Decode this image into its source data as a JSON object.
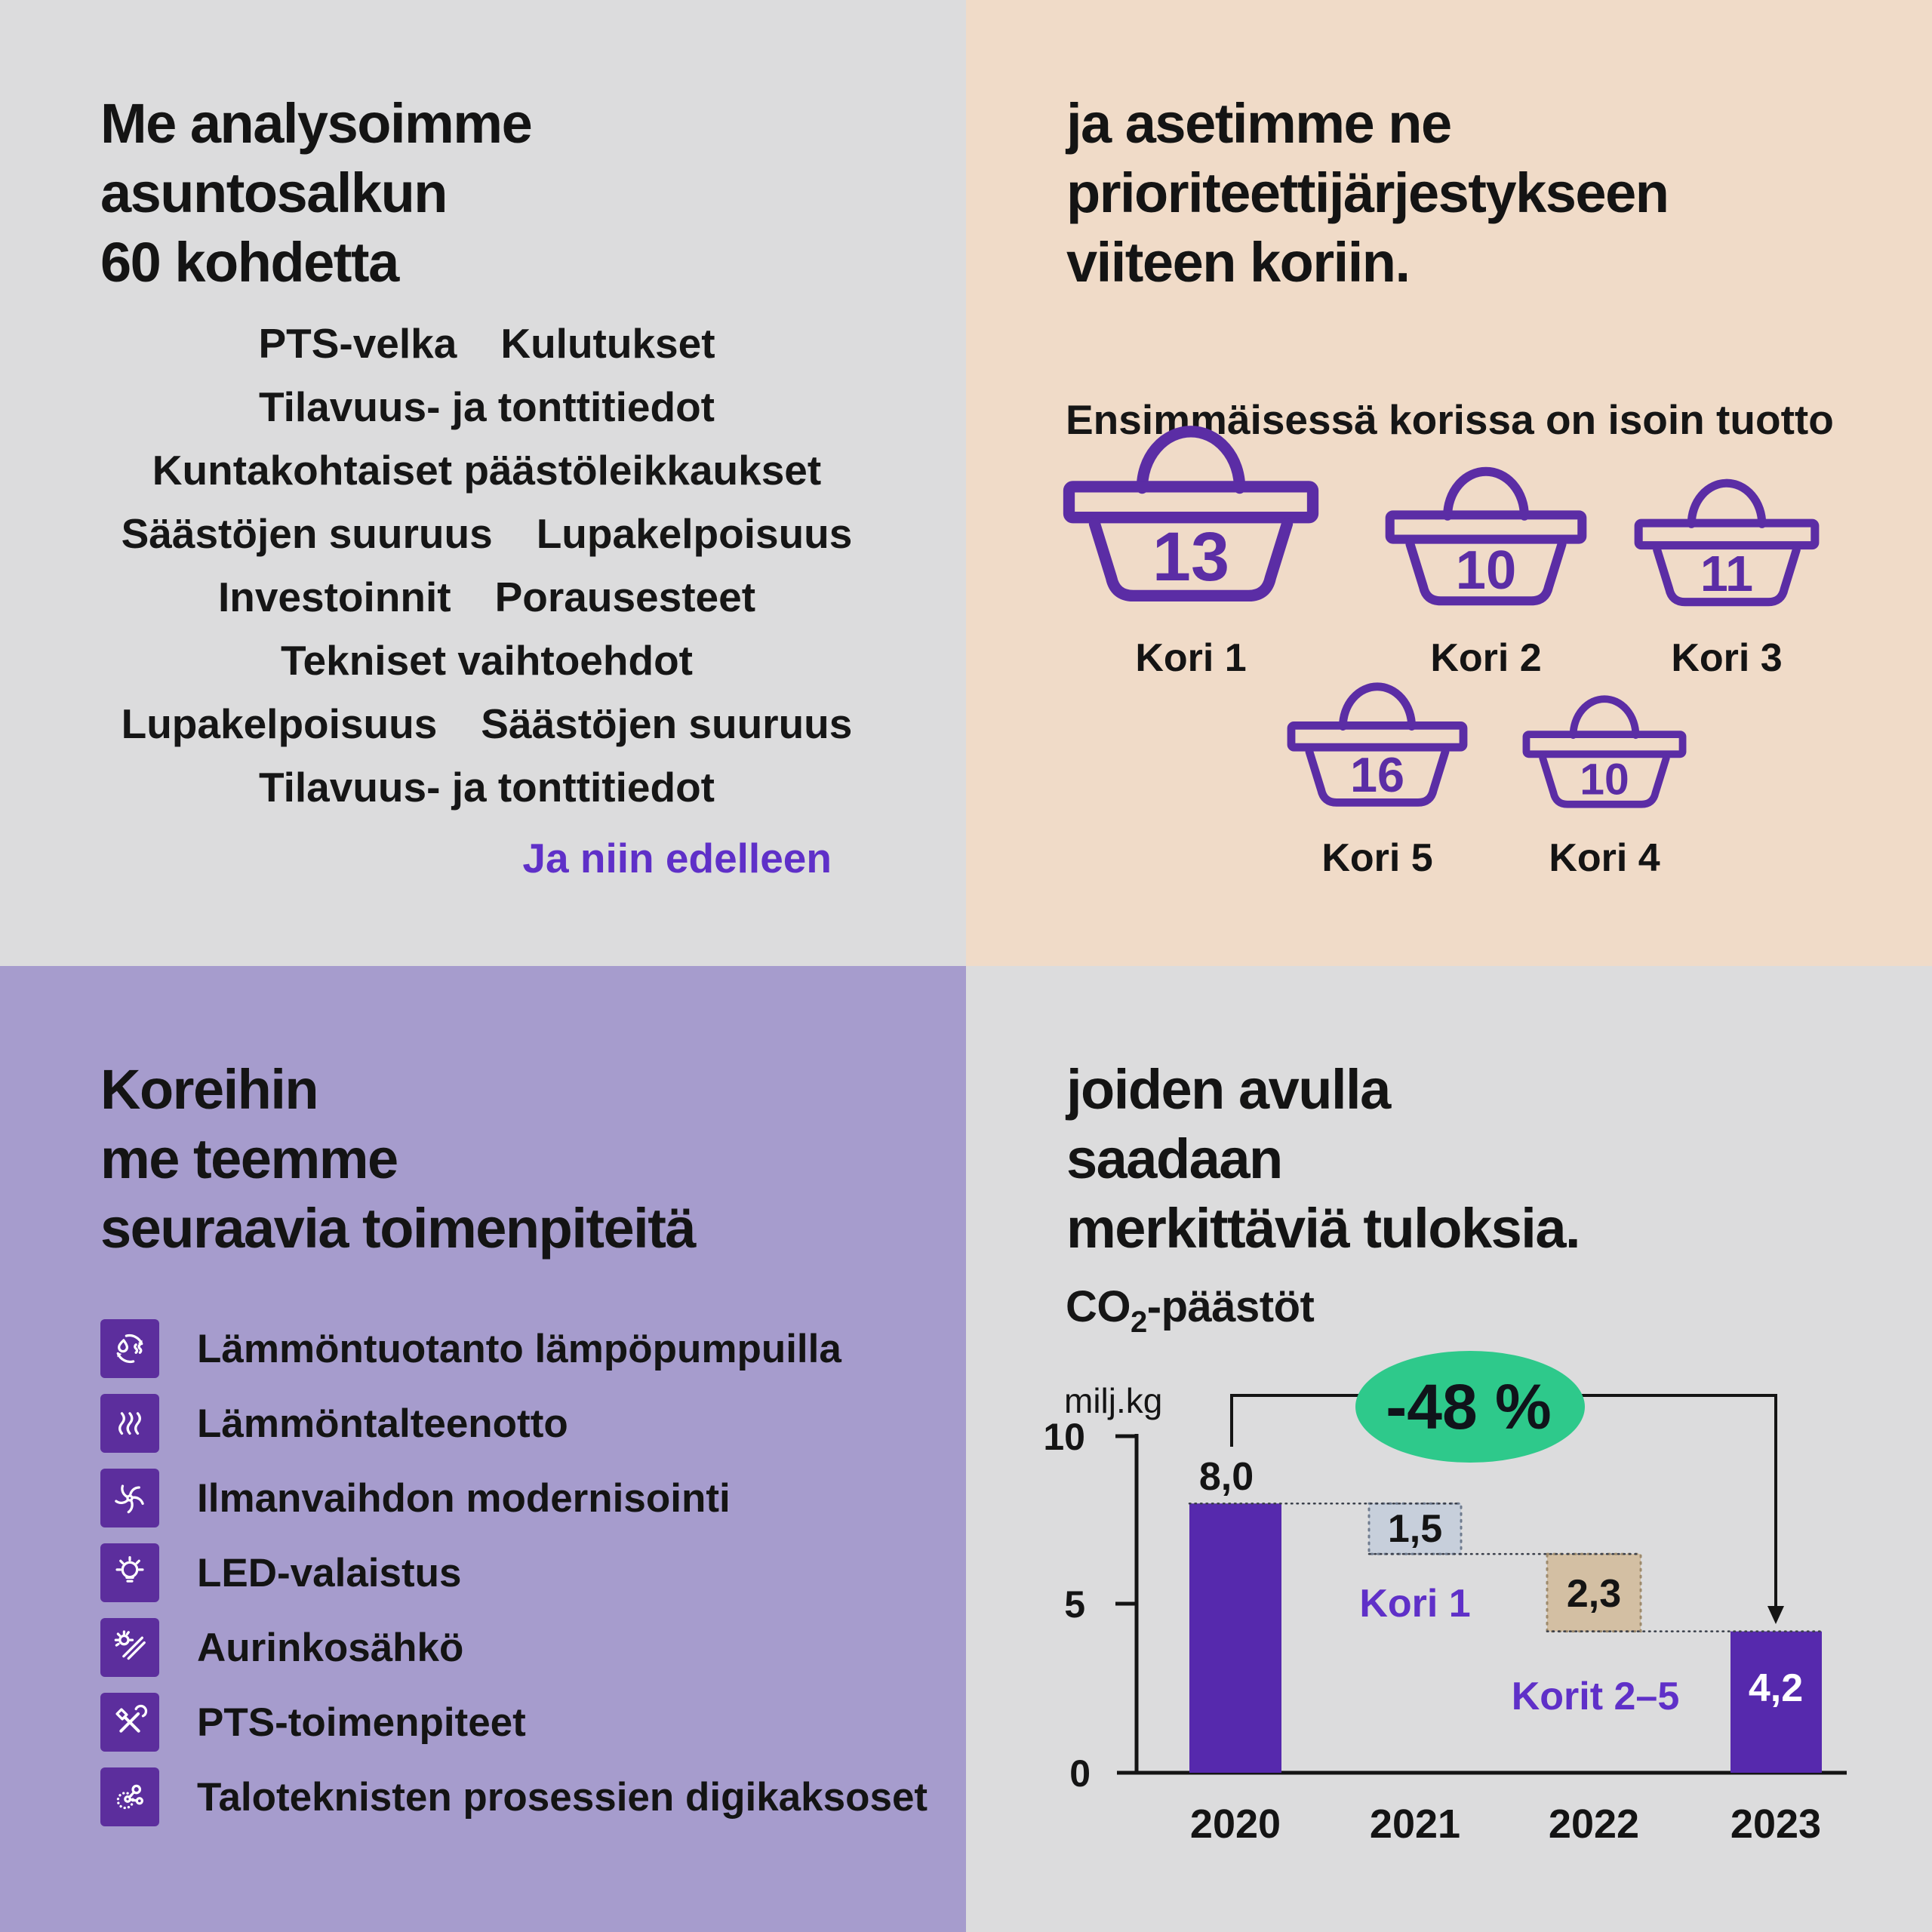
{
  "colors": {
    "bg_gray": "#dcdcdd",
    "bg_peach": "#f0dbc8",
    "bg_lavender": "#a69ccd",
    "deep_purple": "#5c2e9d",
    "basket_purple": "#5b2da5",
    "bar_purple": "#5629ad",
    "accent_text_purple": "#5f30c8",
    "badge_green": "#2ec98b",
    "block_blue": "#c7cfdb",
    "block_tan": "#d3bfa3",
    "text_dark": "#141414"
  },
  "quadrants": {
    "analysis": {
      "title_lines": [
        "Me analysoimme",
        "asuntosalkun",
        "60 kohdetta"
      ],
      "word_lines": [
        [
          "PTS-velka",
          "Kulutukset"
        ],
        [
          "Tilavuus- ja tonttitiedot"
        ],
        [
          "Kuntakohtaiset päästöleikkaukset"
        ],
        [
          "Säästöjen suuruus",
          "Lupakelpoisuus"
        ],
        [
          "Investoinnit",
          "Porausesteet"
        ],
        [
          "Tekniset vaihtoehdot"
        ],
        [
          "Lupakelpoisuus",
          "Säästöjen suuruus"
        ],
        [
          "Tilavuus- ja tonttitiedot"
        ]
      ],
      "footnote": "Ja niin edelleen"
    },
    "baskets": {
      "title_lines": [
        "ja asetimme ne",
        "prioriteettijärjestykseen",
        "viiteen koriin."
      ],
      "subtitle": "Ensimmäisessä korissa on isoin tuotto",
      "items": [
        {
          "value": "13",
          "label": "Kori 1"
        },
        {
          "value": "10",
          "label": "Kori 2"
        },
        {
          "value": "11",
          "label": "Kori 3"
        },
        {
          "value": "16",
          "label": "Kori 5"
        },
        {
          "value": "10",
          "label": "Kori 4"
        }
      ]
    },
    "actions": {
      "title_lines": [
        "Koreihin",
        "me teemme",
        "seuraavia toimenpiteitä"
      ],
      "items": [
        {
          "icon": "heat-pump-icon",
          "label": "Lämmöntuotanto lämpöpumpuilla"
        },
        {
          "icon": "heat-recovery-icon",
          "label": "Lämmöntalteenotto"
        },
        {
          "icon": "ventilation-icon",
          "label": "Ilmanvaihdon modernisointi"
        },
        {
          "icon": "led-light-icon",
          "label": "LED-valaistus"
        },
        {
          "icon": "solar-power-icon",
          "label": "Aurinkosähkö"
        },
        {
          "icon": "tools-icon",
          "label": "PTS-toimenpiteet"
        },
        {
          "icon": "digital-twin-icon",
          "label": "Taloteknisten prosessien digikaksoset"
        }
      ]
    },
    "results": {
      "title_lines": [
        "joiden avulla",
        "saadaan",
        "merkittäviä tuloksia."
      ]
    }
  },
  "chart_data": {
    "type": "bar",
    "subtype": "waterfall",
    "title": "CO₂-päästöt",
    "title_parts": {
      "prefix": "CO",
      "sub": "2",
      "suffix": "-päästöt"
    },
    "unit_label": "milj.kg",
    "categories": [
      "2020",
      "2021",
      "2022",
      "2023"
    ],
    "ylim": [
      0,
      10
    ],
    "yticks": [
      "10",
      "5",
      "0"
    ],
    "grid": false,
    "legend_position": "none",
    "columns": [
      {
        "year": "2020",
        "kind": "start",
        "value": 8.0,
        "label": "8,0"
      },
      {
        "year": "2021",
        "kind": "decrease",
        "value": 1.5,
        "label": "1,5",
        "annotation": "Kori 1"
      },
      {
        "year": "2022",
        "kind": "decrease",
        "value": 2.3,
        "label": "2,3",
        "annotation": "Korit 2–5"
      },
      {
        "year": "2023",
        "kind": "end",
        "value": 4.2,
        "label": "4,2"
      }
    ],
    "change_badge": "-48 %"
  }
}
